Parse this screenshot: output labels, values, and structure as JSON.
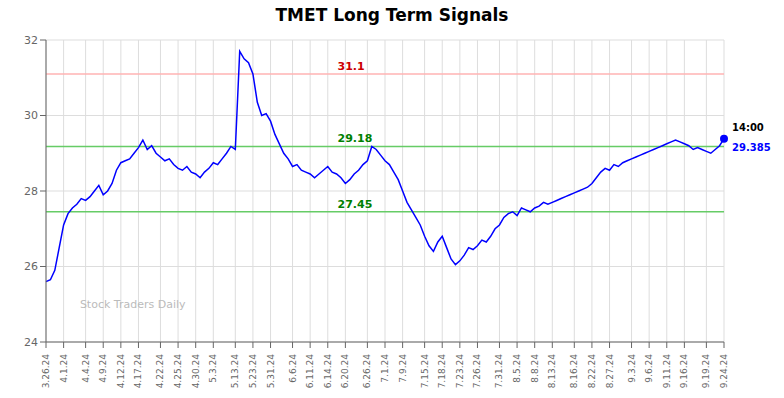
{
  "chart_data": {
    "type": "line",
    "title": "TMET Long Term Signals",
    "categories": [
      "3.26.24",
      null,
      null,
      null,
      "4.1.24",
      null,
      null,
      null,
      null,
      "4.4.24",
      null,
      null,
      null,
      "4.9.24",
      null,
      null,
      null,
      "4.12.24",
      null,
      null,
      null,
      "4.17.24",
      null,
      null,
      null,
      null,
      "4.22.24",
      null,
      null,
      null,
      "4.25.24",
      null,
      null,
      null,
      "4.30.24",
      null,
      null,
      null,
      "5.3.24",
      null,
      null,
      null,
      null,
      "5.13.24",
      null,
      null,
      null,
      "5.23.24",
      null,
      null,
      null,
      "5.31.24",
      null,
      null,
      null,
      null,
      "6.6.24",
      null,
      null,
      null,
      "6.11.24",
      null,
      null,
      null,
      "6.14.24",
      null,
      null,
      null,
      "6.20.24",
      null,
      null,
      null,
      null,
      "6.26.24",
      null,
      null,
      null,
      "7.1.24",
      null,
      null,
      null,
      "7.9.24",
      null,
      null,
      null,
      null,
      "7.15.24",
      null,
      null,
      null,
      "7.18.24",
      null,
      null,
      null,
      "7.23.24",
      null,
      null,
      null,
      "7.26.24",
      null,
      null,
      null,
      null,
      "7.31.24",
      null,
      null,
      null,
      "8.5.24",
      null,
      null,
      null,
      "8.8.24",
      null,
      null,
      null,
      "8.13.24",
      null,
      null,
      null,
      null,
      "8.16.24",
      null,
      null,
      null,
      "8.22.24",
      null,
      null,
      null,
      "8.27.24",
      null,
      null,
      null,
      null,
      "9.3.24",
      null,
      null,
      null,
      "9.6.24",
      null,
      null,
      null,
      "9.11.24",
      null,
      null,
      null,
      "9.16.24",
      null,
      null,
      null,
      null,
      "9.19.24",
      null,
      null,
      null,
      "9.24.24"
    ],
    "values": [
      25.6,
      25.65,
      25.9,
      26.5,
      27.1,
      27.4,
      27.55,
      27.65,
      27.8,
      27.75,
      27.85,
      28.0,
      28.15,
      27.9,
      28.0,
      28.2,
      28.55,
      28.75,
      28.8,
      28.85,
      29.0,
      29.15,
      29.35,
      29.1,
      29.2,
      29.0,
      28.9,
      28.8,
      28.85,
      28.7,
      28.6,
      28.55,
      28.65,
      28.5,
      28.45,
      28.35,
      28.5,
      28.6,
      28.75,
      28.7,
      28.85,
      29.0,
      29.18,
      29.1,
      31.7,
      31.5,
      31.4,
      31.1,
      30.35,
      30.0,
      30.05,
      29.85,
      29.5,
      29.25,
      29.0,
      28.85,
      28.65,
      28.7,
      28.55,
      28.5,
      28.45,
      28.35,
      28.45,
      28.55,
      28.65,
      28.5,
      28.45,
      28.35,
      28.2,
      28.3,
      28.45,
      28.55,
      28.7,
      28.8,
      29.18,
      29.1,
      28.95,
      28.8,
      28.7,
      28.5,
      28.3,
      28.0,
      27.7,
      27.5,
      27.3,
      27.1,
      26.8,
      26.55,
      26.4,
      26.65,
      26.8,
      26.5,
      26.2,
      26.05,
      26.15,
      26.3,
      26.5,
      26.45,
      26.55,
      26.7,
      26.65,
      26.8,
      27.0,
      27.1,
      27.3,
      27.4,
      27.45,
      27.35,
      27.55,
      27.5,
      27.45,
      27.55,
      27.6,
      27.7,
      27.65,
      27.7,
      27.75,
      27.8,
      27.85,
      27.9,
      27.95,
      28.0,
      28.05,
      28.1,
      28.2,
      28.35,
      28.5,
      28.6,
      28.55,
      28.7,
      28.65,
      28.75,
      28.8,
      28.85,
      28.9,
      28.95,
      29.0,
      29.05,
      29.1,
      29.15,
      29.2,
      29.25,
      29.3,
      29.35,
      29.3,
      29.25,
      29.2,
      29.1,
      29.15,
      29.1,
      29.05,
      29.0,
      29.1,
      29.2,
      29.385
    ],
    "color": "blue",
    "ylim": [
      24,
      32
    ],
    "yticks": [
      24,
      26,
      28,
      30,
      32
    ],
    "grid": true,
    "annotations": [
      {
        "text": "31.1",
        "y": 31.1,
        "color": "#cc0000",
        "line_color": "#ffb3b3"
      },
      {
        "text": "29.18",
        "y": 29.18,
        "color": "green",
        "line_color": "#66cc66"
      },
      {
        "text": "27.45",
        "y": 27.45,
        "color": "green",
        "line_color": "#66cc66"
      }
    ],
    "last_point": {
      "label": "14:00",
      "value": 29.385
    },
    "watermark": "Stock Traders Daily"
  }
}
